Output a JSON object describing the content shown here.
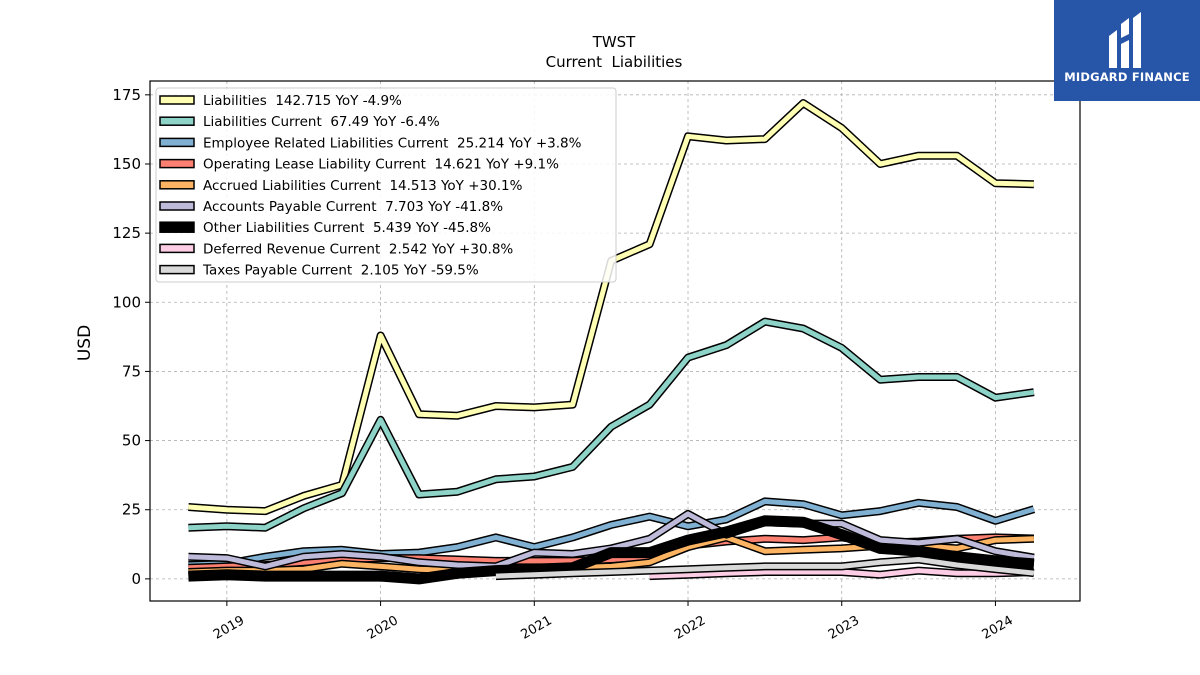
{
  "brand": {
    "name": "MIDGARD FINANCE"
  },
  "chart_data": {
    "type": "line",
    "title": "TWST",
    "subtitle": "Current  Liabilities",
    "ylabel": "USD",
    "xlabel": "",
    "ylim": [
      -8,
      180
    ],
    "xlim": [
      2018.5,
      2024.55
    ],
    "yticks": [
      0,
      25,
      50,
      75,
      100,
      125,
      150,
      175
    ],
    "xticks": [
      2019,
      2020,
      2021,
      2022,
      2023,
      2024
    ],
    "grid": true,
    "legend_position": "top-left",
    "series": [
      {
        "name": "Liabilities",
        "legend": "Liabilities  142.715 YoY -4.9%",
        "color": "#ffffb3",
        "width": 5,
        "points": [
          [
            2018.75,
            26
          ],
          [
            2019.0,
            25
          ],
          [
            2019.25,
            24.5
          ],
          [
            2019.5,
            30
          ],
          [
            2019.75,
            34
          ],
          [
            2020.0,
            88
          ],
          [
            2020.25,
            59.5
          ],
          [
            2020.5,
            59
          ],
          [
            2020.75,
            62.5
          ],
          [
            2021.0,
            62
          ],
          [
            2021.25,
            63
          ],
          [
            2021.5,
            115
          ],
          [
            2021.75,
            121
          ],
          [
            2022.0,
            160
          ],
          [
            2022.25,
            158.5
          ],
          [
            2022.5,
            159
          ],
          [
            2022.75,
            172
          ],
          [
            2023.0,
            163
          ],
          [
            2023.25,
            150
          ],
          [
            2023.5,
            153
          ],
          [
            2023.75,
            153
          ],
          [
            2024.0,
            143
          ],
          [
            2024.25,
            142.7
          ]
        ]
      },
      {
        "name": "Liabilities Current",
        "legend": "Liabilities Current  67.49 YoY -6.4%",
        "color": "#8dd3c7",
        "width": 5,
        "points": [
          [
            2018.75,
            18.5
          ],
          [
            2019.0,
            19
          ],
          [
            2019.25,
            18.5
          ],
          [
            2019.5,
            25.5
          ],
          [
            2019.75,
            31
          ],
          [
            2020.0,
            57.5
          ],
          [
            2020.25,
            30.5
          ],
          [
            2020.5,
            31.5
          ],
          [
            2020.75,
            36
          ],
          [
            2021.0,
            37
          ],
          [
            2021.25,
            40.5
          ],
          [
            2021.5,
            55
          ],
          [
            2021.75,
            63
          ],
          [
            2022.0,
            80
          ],
          [
            2022.25,
            84.5
          ],
          [
            2022.5,
            93
          ],
          [
            2022.75,
            90.5
          ],
          [
            2023.0,
            83.5
          ],
          [
            2023.25,
            72
          ],
          [
            2023.5,
            73
          ],
          [
            2023.75,
            73
          ],
          [
            2024.0,
            65.5
          ],
          [
            2024.25,
            67.5
          ]
        ]
      },
      {
        "name": "Employee Related Liabilities Current",
        "legend": "Employee Related Liabilities Current  25.214 YoY +3.8%",
        "color": "#80b1d3",
        "width": 5,
        "points": [
          [
            2018.75,
            5
          ],
          [
            2019.0,
            5.5
          ],
          [
            2019.25,
            8
          ],
          [
            2019.5,
            10
          ],
          [
            2019.75,
            10.5
          ],
          [
            2020.0,
            9
          ],
          [
            2020.25,
            9.5
          ],
          [
            2020.5,
            11.5
          ],
          [
            2020.75,
            15
          ],
          [
            2021.0,
            11.5
          ],
          [
            2021.25,
            15
          ],
          [
            2021.5,
            19.5
          ],
          [
            2021.75,
            22.5
          ],
          [
            2022.0,
            19
          ],
          [
            2022.25,
            21.5
          ],
          [
            2022.5,
            28
          ],
          [
            2022.75,
            27
          ],
          [
            2023.0,
            23
          ],
          [
            2023.25,
            24.5
          ],
          [
            2023.5,
            27.5
          ],
          [
            2023.75,
            26
          ],
          [
            2024.0,
            21
          ],
          [
            2024.25,
            25.2
          ]
        ]
      },
      {
        "name": "Operating Lease Liability Current",
        "legend": "Operating Lease Liability Current  14.621 YoY +9.1%",
        "color": "#fb8072",
        "width": 5,
        "points": [
          [
            2018.75,
            4
          ],
          [
            2019.0,
            4.5
          ],
          [
            2019.25,
            5
          ],
          [
            2019.5,
            6
          ],
          [
            2019.75,
            7
          ],
          [
            2020.0,
            7.5
          ],
          [
            2020.25,
            7.5
          ],
          [
            2020.5,
            7
          ],
          [
            2020.75,
            6.5
          ],
          [
            2021.0,
            6.5
          ],
          [
            2021.25,
            6.5
          ],
          [
            2021.5,
            7
          ],
          [
            2021.75,
            8
          ],
          [
            2022.0,
            12
          ],
          [
            2022.25,
            13.5
          ],
          [
            2022.5,
            14.5
          ],
          [
            2022.75,
            14
          ],
          [
            2023.0,
            15
          ],
          [
            2023.25,
            13
          ],
          [
            2023.5,
            13.5
          ],
          [
            2023.75,
            14.5
          ],
          [
            2024.0,
            15
          ],
          [
            2024.25,
            14.6
          ]
        ]
      },
      {
        "name": "Accrued Liabilities Current",
        "legend": "Accrued Liabilities Current  14.513 YoY +30.1%",
        "color": "#fdb462",
        "width": 5,
        "points": [
          [
            2018.75,
            2.5
          ],
          [
            2019.0,
            3
          ],
          [
            2019.25,
            3
          ],
          [
            2019.5,
            3.5
          ],
          [
            2019.75,
            5.5
          ],
          [
            2020.0,
            4.5
          ],
          [
            2020.25,
            3.5
          ],
          [
            2020.5,
            3
          ],
          [
            2020.75,
            3
          ],
          [
            2021.0,
            3.5
          ],
          [
            2021.25,
            4
          ],
          [
            2021.5,
            4.5
          ],
          [
            2021.75,
            6
          ],
          [
            2022.0,
            11.5
          ],
          [
            2022.25,
            15
          ],
          [
            2022.5,
            10
          ],
          [
            2022.75,
            10.5
          ],
          [
            2023.0,
            11
          ],
          [
            2023.25,
            12
          ],
          [
            2023.5,
            12
          ],
          [
            2023.75,
            11
          ],
          [
            2024.0,
            14
          ],
          [
            2024.25,
            14.5
          ]
        ]
      },
      {
        "name": "Accounts Payable Current",
        "legend": "Accounts Payable Current  7.703 YoY -41.8%",
        "color": "#bebada",
        "width": 5,
        "points": [
          [
            2018.75,
            8
          ],
          [
            2019.0,
            7.5
          ],
          [
            2019.25,
            4.5
          ],
          [
            2019.5,
            8
          ],
          [
            2019.75,
            9
          ],
          [
            2020.0,
            8
          ],
          [
            2020.25,
            6
          ],
          [
            2020.5,
            5
          ],
          [
            2020.75,
            4.5
          ],
          [
            2021.0,
            9.5
          ],
          [
            2021.25,
            9
          ],
          [
            2021.5,
            11
          ],
          [
            2021.75,
            14.5
          ],
          [
            2022.0,
            23.5
          ],
          [
            2022.25,
            16
          ],
          [
            2022.5,
            20.5
          ],
          [
            2022.75,
            20
          ],
          [
            2023.0,
            20
          ],
          [
            2023.25,
            14
          ],
          [
            2023.5,
            13
          ],
          [
            2023.75,
            14.5
          ],
          [
            2024.0,
            10
          ],
          [
            2024.25,
            7.7
          ]
        ]
      },
      {
        "name": "Other Liabilities Current",
        "legend": "Other Liabilities Current  5.439 YoY -45.8%",
        "color": "#000000",
        "width": 8,
        "points": [
          [
            2018.75,
            1
          ],
          [
            2019.0,
            1.5
          ],
          [
            2019.25,
            1
          ],
          [
            2019.5,
            1
          ],
          [
            2019.75,
            1
          ],
          [
            2020.0,
            1
          ],
          [
            2020.25,
            0
          ],
          [
            2020.5,
            2
          ],
          [
            2020.75,
            3
          ],
          [
            2021.0,
            3.5
          ],
          [
            2021.25,
            4
          ],
          [
            2021.5,
            9.5
          ],
          [
            2021.75,
            9.5
          ],
          [
            2022.0,
            14
          ],
          [
            2022.25,
            17
          ],
          [
            2022.5,
            21
          ],
          [
            2022.75,
            20.5
          ],
          [
            2023.0,
            16
          ],
          [
            2023.25,
            11
          ],
          [
            2023.5,
            10
          ],
          [
            2023.75,
            8
          ],
          [
            2024.0,
            6.5
          ],
          [
            2024.25,
            5.4
          ]
        ]
      },
      {
        "name": "Deferred Revenue Current",
        "legend": "Deferred Revenue Current  2.542 YoY +30.8%",
        "color": "#fccde5",
        "width": 5,
        "points": [
          [
            2021.75,
            1
          ],
          [
            2022.0,
            1.5
          ],
          [
            2022.25,
            2
          ],
          [
            2022.5,
            2.5
          ],
          [
            2022.75,
            2.5
          ],
          [
            2023.0,
            2.5
          ],
          [
            2023.25,
            1.5
          ],
          [
            2023.5,
            3
          ],
          [
            2023.75,
            2
          ],
          [
            2024.0,
            2
          ],
          [
            2024.25,
            2.5
          ]
        ]
      },
      {
        "name": "Taxes Payable Current",
        "legend": "Taxes Payable Current  2.105 YoY -59.5%",
        "color": "#d9d9d9",
        "width": 5,
        "points": [
          [
            2020.75,
            1
          ],
          [
            2021.0,
            1.5
          ],
          [
            2021.25,
            2
          ],
          [
            2021.5,
            2.5
          ],
          [
            2021.75,
            3
          ],
          [
            2022.0,
            3.5
          ],
          [
            2022.25,
            4
          ],
          [
            2022.5,
            4.5
          ],
          [
            2022.75,
            4.5
          ],
          [
            2023.0,
            4.5
          ],
          [
            2023.25,
            6
          ],
          [
            2023.5,
            7
          ],
          [
            2023.75,
            5
          ],
          [
            2024.0,
            3.5
          ],
          [
            2024.25,
            2.1
          ]
        ]
      }
    ]
  }
}
